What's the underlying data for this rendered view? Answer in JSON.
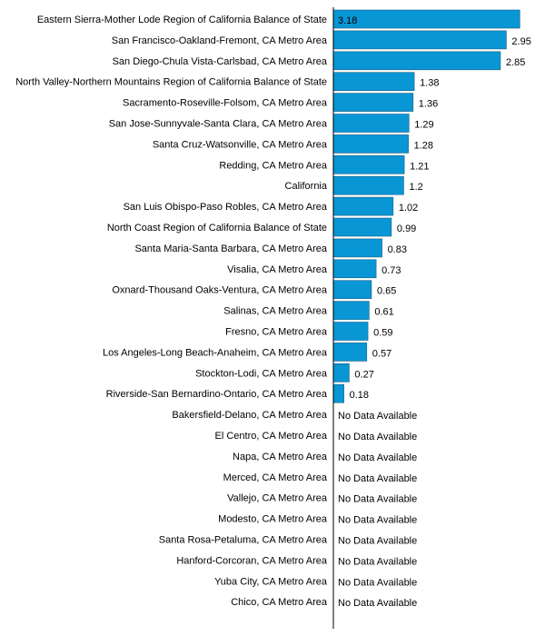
{
  "colors": {
    "bar": "#0996d4",
    "bar_stroke": "#1a5f85",
    "text": "#000000",
    "axis": "#000000"
  },
  "chart_data": {
    "type": "bar",
    "orientation": "horizontal",
    "title": "",
    "xlabel": "",
    "ylabel": "",
    "xlim": [
      0,
      3.3
    ],
    "grid": false,
    "legend": "none",
    "categories": [
      "Eastern Sierra-Mother Lode Region of California Balance of State",
      "San Francisco-Oakland-Fremont, CA Metro Area",
      "San Diego-Chula Vista-Carlsbad, CA Metro Area",
      "North Valley-Northern Mountains Region of California Balance of State",
      "Sacramento-Roseville-Folsom, CA Metro Area",
      "San Jose-Sunnyvale-Santa Clara, CA Metro Area",
      "Santa Cruz-Watsonville, CA Metro Area",
      "Redding, CA Metro Area",
      "California",
      "San Luis Obispo-Paso Robles, CA Metro Area",
      "North Coast Region of California Balance of State",
      "Santa Maria-Santa Barbara, CA Metro Area",
      "Visalia, CA Metro Area",
      "Oxnard-Thousand Oaks-Ventura, CA Metro Area",
      "Salinas, CA Metro Area",
      "Fresno, CA Metro Area",
      "Los Angeles-Long Beach-Anaheim, CA Metro Area",
      "Stockton-Lodi, CA Metro Area",
      "Riverside-San Bernardino-Ontario, CA Metro Area",
      "Bakersfield-Delano, CA Metro Area",
      "El Centro, CA Metro Area",
      "Napa, CA Metro Area",
      "Merced, CA Metro Area",
      "Vallejo, CA Metro Area",
      "Modesto, CA Metro Area",
      "Santa Rosa-Petaluma, CA Metro Area",
      "Hanford-Corcoran, CA Metro Area",
      "Yuba City, CA Metro Area",
      "Chico, CA Metro Area"
    ],
    "values": [
      3.18,
      2.95,
      2.85,
      1.38,
      1.36,
      1.29,
      1.28,
      1.21,
      1.2,
      1.02,
      0.99,
      0.83,
      0.73,
      0.65,
      0.61,
      0.59,
      0.57,
      0.27,
      0.18,
      null,
      null,
      null,
      null,
      null,
      null,
      null,
      null,
      null,
      null
    ],
    "value_labels": [
      "3.18",
      "2.95",
      "2.85",
      "1.38",
      "1.36",
      "1.29",
      "1.28",
      "1.21",
      "1.2",
      "1.02",
      "0.99",
      "0.83",
      "0.73",
      "0.65",
      "0.61",
      "0.59",
      "0.57",
      "0.27",
      "0.18",
      "No Data Available",
      "No Data Available",
      "No Data Available",
      "No Data Available",
      "No Data Available",
      "No Data Available",
      "No Data Available",
      "No Data Available",
      "No Data Available",
      "No Data Available"
    ]
  }
}
